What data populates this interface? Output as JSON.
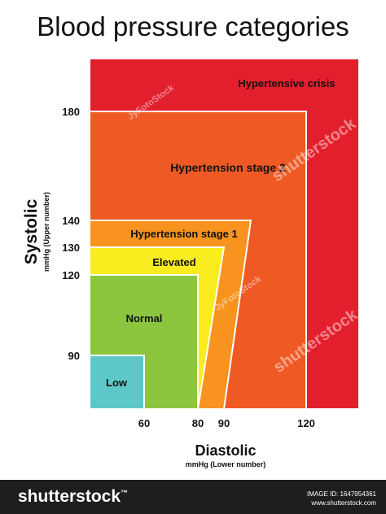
{
  "title": "Blood pressure categories",
  "chart_data": {
    "type": "area",
    "title": "Blood pressure categories",
    "xlabel": "Diastolic",
    "xlabel_sub": "mmHg (Lower number)",
    "ylabel": "Systolic",
    "ylabel_sub": "mmHg (Upper number)",
    "x_ticks": [
      60,
      80,
      90,
      120
    ],
    "y_ticks": [
      90,
      120,
      130,
      140,
      180
    ],
    "regions": [
      {
        "name": "Hypertensive crisis",
        "color": "#e41f2d"
      },
      {
        "name": "Hypertension stage 2",
        "color": "#ef5a24",
        "systolic_max": 180,
        "diastolic_max": 120
      },
      {
        "name": "Hypertension stage 1",
        "color": "#f7931e",
        "systolic_max": 140,
        "diastolic_max": 90
      },
      {
        "name": "Elevated",
        "color": "#f9ec1f",
        "systolic_max": 130,
        "diastolic_max": 80
      },
      {
        "name": "Normal",
        "color": "#8cc63f",
        "systolic_max": 120,
        "diastolic_max": 80
      },
      {
        "name": "Low",
        "color": "#5ec8c8",
        "systolic_max": 90,
        "diastolic_max": 60
      }
    ]
  },
  "footer": {
    "brand": "shutterstock",
    "image_id": "IMAGE ID: 1647954361",
    "site": "www.shutterstock.com"
  },
  "watermarks": [
    "shutterstock",
    "JyFotoStock"
  ]
}
